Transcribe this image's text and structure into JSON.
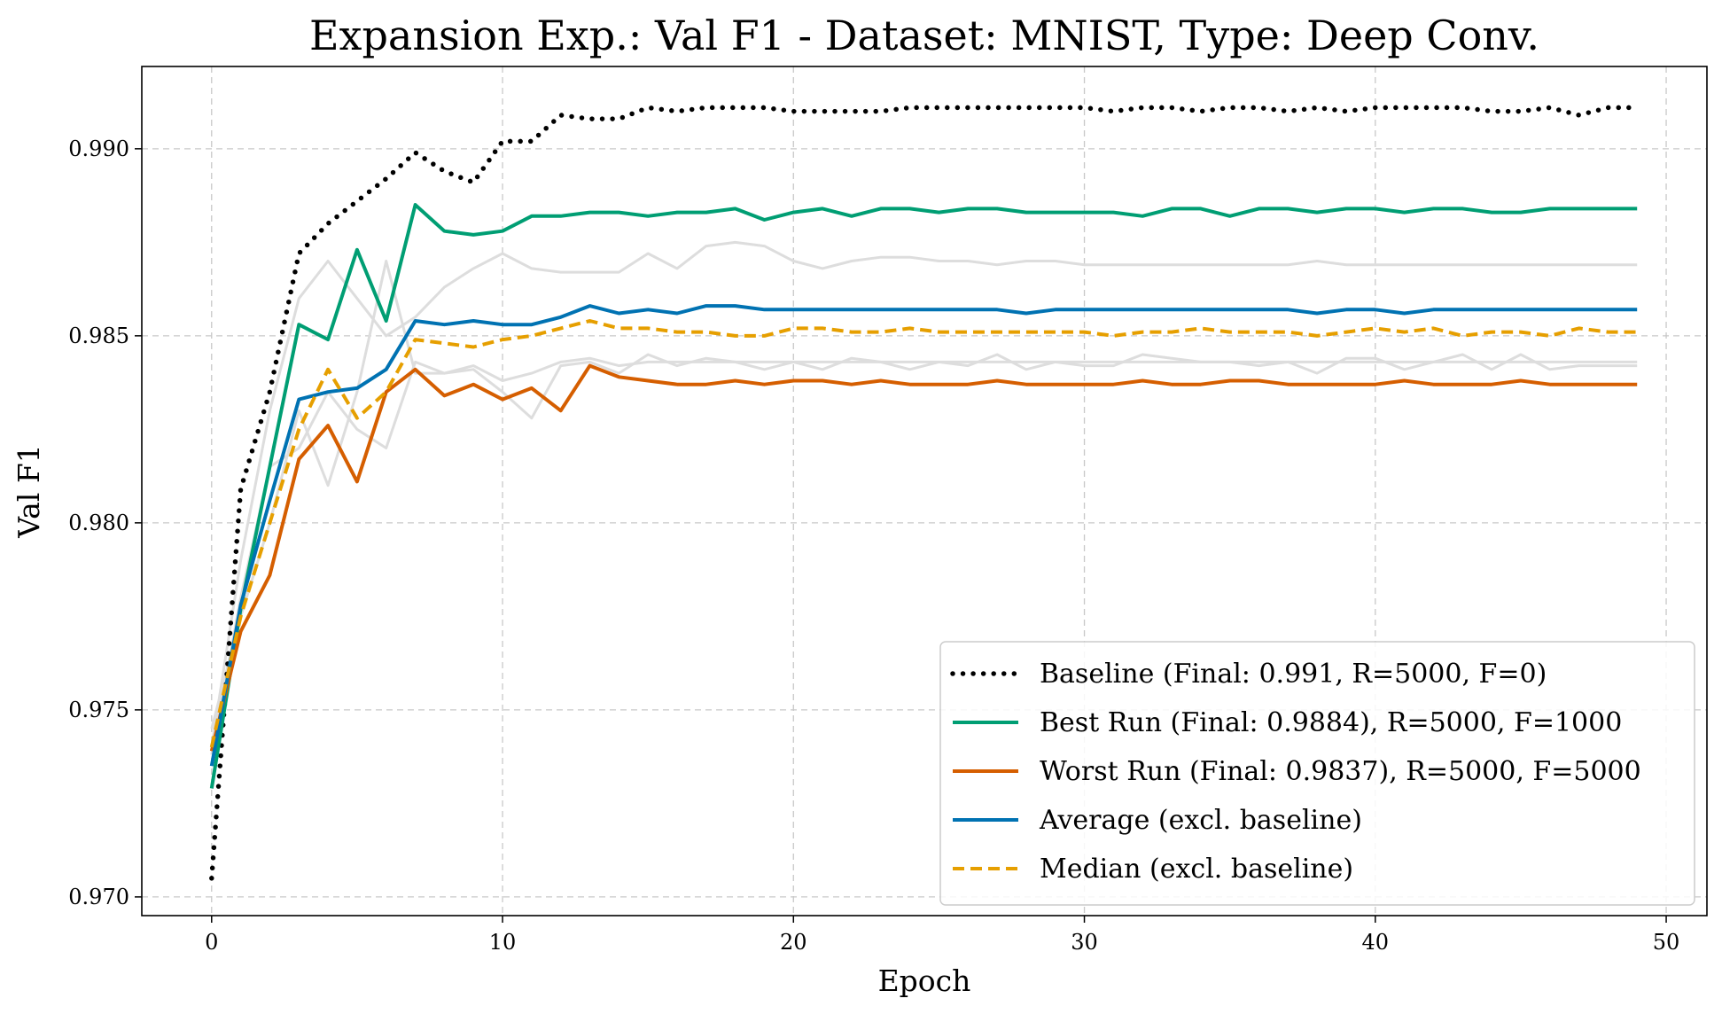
{
  "chart_data": {
    "type": "line",
    "title": "Expansion Exp.: Val F1 - Dataset: MNIST, Type: Deep Conv.",
    "xlabel": "Epoch",
    "ylabel": "Val F1",
    "xlim": [
      -2.4,
      51.4
    ],
    "ylim": [
      0.9695,
      0.9922
    ],
    "xticks": [
      0,
      10,
      20,
      30,
      40,
      50
    ],
    "xtick_labels": [
      "0",
      "10",
      "20",
      "30",
      "40",
      "50"
    ],
    "yticks": [
      0.97,
      0.975,
      0.98,
      0.985,
      0.99
    ],
    "ytick_labels": [
      "0.970",
      "0.975",
      "0.980",
      "0.985",
      "0.990"
    ],
    "grid": true,
    "legend_position": "lower-right",
    "background_series": [
      {
        "color": "#dddddd",
        "values": [
          0.974,
          0.979,
          0.983,
          0.986,
          0.987,
          0.986,
          0.985,
          0.9855,
          0.9863,
          0.9868,
          0.9872,
          0.9868,
          0.9867,
          0.9867,
          0.9867,
          0.9872,
          0.9868,
          0.9874,
          0.9875,
          0.9874,
          0.987,
          0.9868,
          0.987,
          0.9871,
          0.9871,
          0.987,
          0.987,
          0.9869,
          0.987,
          0.987,
          0.9869,
          0.9869,
          0.9869,
          0.9869,
          0.9869,
          0.9869,
          0.9869,
          0.9869,
          0.987,
          0.9869,
          0.9869,
          0.9869,
          0.9869,
          0.9869,
          0.9869,
          0.9869,
          0.9869,
          0.9869,
          0.9869,
          0.9869
        ]
      },
      {
        "color": "#dddddd",
        "values": [
          0.9745,
          0.9775,
          0.98,
          0.983,
          0.981,
          0.9835,
          0.987,
          0.984,
          0.984,
          0.9841,
          0.9835,
          0.9828,
          0.9842,
          0.9843,
          0.984,
          0.9845,
          0.9842,
          0.9844,
          0.9843,
          0.9841,
          0.9843,
          0.9841,
          0.9844,
          0.9843,
          0.9841,
          0.9843,
          0.9842,
          0.9845,
          0.9841,
          0.9843,
          0.9842,
          0.9842,
          0.9845,
          0.9844,
          0.9843,
          0.9843,
          0.9842,
          0.9843,
          0.984,
          0.9844,
          0.9844,
          0.9841,
          0.9843,
          0.9845,
          0.9841,
          0.9845,
          0.9841,
          0.9842,
          0.9842,
          0.9842
        ]
      },
      {
        "color": "#dddddd",
        "values": [
          0.9738,
          0.978,
          0.9815,
          0.982,
          0.9835,
          0.9825,
          0.982,
          0.9843,
          0.984,
          0.9842,
          0.9838,
          0.984,
          0.9843,
          0.9844,
          0.9842,
          0.9843,
          0.9843,
          0.9843,
          0.9843,
          0.9843,
          0.9843,
          0.9843,
          0.9843,
          0.9843,
          0.9843,
          0.9843,
          0.9843,
          0.9843,
          0.9843,
          0.9843,
          0.9843,
          0.9843,
          0.9843,
          0.9843,
          0.9843,
          0.9843,
          0.9843,
          0.9843,
          0.9843,
          0.9843,
          0.9843,
          0.9843,
          0.9843,
          0.9843,
          0.9843,
          0.9843,
          0.9843,
          0.9843,
          0.9843,
          0.9843
        ]
      }
    ],
    "series": [
      {
        "name": "Baseline (Final: 0.991, R=5000, F=0)",
        "color": "#000000",
        "style": "dotted",
        "width": 5.5,
        "values": [
          0.9705,
          0.9809,
          0.9835,
          0.9872,
          0.988,
          0.9886,
          0.9892,
          0.9899,
          0.9894,
          0.9891,
          0.9902,
          0.9902,
          0.9909,
          0.9908,
          0.9908,
          0.9911,
          0.991,
          0.9911,
          0.9911,
          0.9911,
          0.991,
          0.991,
          0.991,
          0.991,
          0.9911,
          0.9911,
          0.9911,
          0.9911,
          0.9911,
          0.9911,
          0.9911,
          0.991,
          0.9911,
          0.9911,
          0.991,
          0.9911,
          0.9911,
          0.991,
          0.9911,
          0.991,
          0.9911,
          0.9911,
          0.9911,
          0.9911,
          0.991,
          0.991,
          0.9911,
          0.9909,
          0.9911,
          0.9911
        ]
      },
      {
        "name": "Best Run (Final: 0.9884), R=5000, F=1000",
        "color": "#009e73",
        "style": "solid",
        "width": 4,
        "values": [
          0.9729,
          0.9777,
          0.9815,
          0.9853,
          0.9849,
          0.9873,
          0.9854,
          0.9885,
          0.9878,
          0.9877,
          0.9878,
          0.9882,
          0.9882,
          0.9883,
          0.9883,
          0.9882,
          0.9883,
          0.9883,
          0.9884,
          0.9881,
          0.9883,
          0.9884,
          0.9882,
          0.9884,
          0.9884,
          0.9883,
          0.9884,
          0.9884,
          0.9883,
          0.9883,
          0.9883,
          0.9883,
          0.9882,
          0.9884,
          0.9884,
          0.9882,
          0.9884,
          0.9884,
          0.9883,
          0.9884,
          0.9884,
          0.9883,
          0.9884,
          0.9884,
          0.9883,
          0.9883,
          0.9884,
          0.9884,
          0.9884,
          0.9884
        ]
      },
      {
        "name": "Worst Run (Final: 0.9837), R=5000, F=5000",
        "color": "#d55e00",
        "style": "solid",
        "width": 4,
        "values": [
          0.9739,
          0.9771,
          0.9786,
          0.9817,
          0.9826,
          0.9811,
          0.9835,
          0.9841,
          0.9834,
          0.9837,
          0.9833,
          0.9836,
          0.983,
          0.9842,
          0.9839,
          0.9838,
          0.9837,
          0.9837,
          0.9838,
          0.9837,
          0.9838,
          0.9838,
          0.9837,
          0.9838,
          0.9837,
          0.9837,
          0.9837,
          0.9838,
          0.9837,
          0.9837,
          0.9837,
          0.9837,
          0.9838,
          0.9837,
          0.9837,
          0.9838,
          0.9838,
          0.9837,
          0.9837,
          0.9837,
          0.9837,
          0.9838,
          0.9837,
          0.9837,
          0.9837,
          0.9838,
          0.9837,
          0.9837,
          0.9837,
          0.9837
        ]
      },
      {
        "name": "Average (excl. baseline)",
        "color": "#0072b2",
        "style": "solid",
        "width": 4,
        "values": [
          0.9735,
          0.9778,
          0.9806,
          0.9833,
          0.9835,
          0.9836,
          0.9841,
          0.9854,
          0.9853,
          0.9854,
          0.9853,
          0.9853,
          0.9855,
          0.9858,
          0.9856,
          0.9857,
          0.9856,
          0.9858,
          0.9858,
          0.9857,
          0.9857,
          0.9857,
          0.9857,
          0.9857,
          0.9857,
          0.9857,
          0.9857,
          0.9857,
          0.9856,
          0.9857,
          0.9857,
          0.9857,
          0.9857,
          0.9857,
          0.9857,
          0.9857,
          0.9857,
          0.9857,
          0.9856,
          0.9857,
          0.9857,
          0.9856,
          0.9857,
          0.9857,
          0.9857,
          0.9857,
          0.9857,
          0.9857,
          0.9857,
          0.9857
        ]
      },
      {
        "name": "Median (excl. baseline)",
        "color": "#e69f00",
        "style": "dashed",
        "width": 4,
        "values": [
          0.974,
          0.9775,
          0.98,
          0.9825,
          0.9841,
          0.9828,
          0.9835,
          0.9849,
          0.9848,
          0.9847,
          0.9849,
          0.985,
          0.9852,
          0.9854,
          0.9852,
          0.9852,
          0.9851,
          0.9851,
          0.985,
          0.985,
          0.9852,
          0.9852,
          0.9851,
          0.9851,
          0.9852,
          0.9851,
          0.9851,
          0.9851,
          0.9851,
          0.9851,
          0.9851,
          0.985,
          0.9851,
          0.9851,
          0.9852,
          0.9851,
          0.9851,
          0.9851,
          0.985,
          0.9851,
          0.9852,
          0.9851,
          0.9852,
          0.985,
          0.9851,
          0.9851,
          0.985,
          0.9852,
          0.9851,
          0.9851
        ]
      }
    ]
  }
}
